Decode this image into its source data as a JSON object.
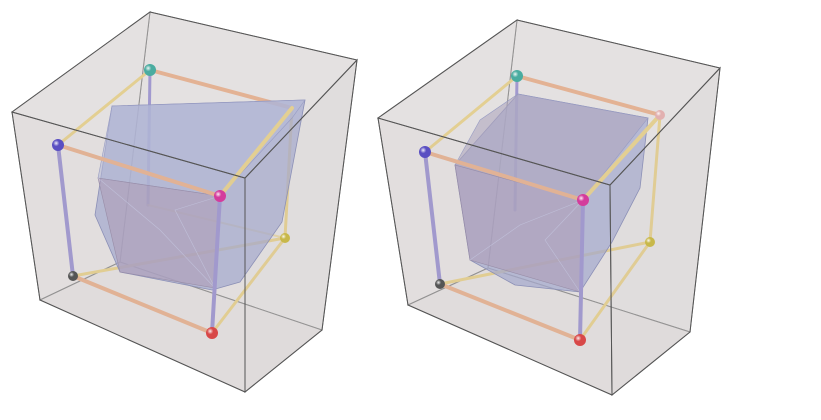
{
  "figure": {
    "panels": [
      {
        "name": "left",
        "box_fill": "#e6e3e3",
        "hull_fill": "#8f96c7",
        "vertex_colors": [
          "#5a4fc2",
          "#4aaca0",
          "#d43c9c",
          "#c8b84a",
          "#555555",
          "#d84848"
        ]
      },
      {
        "name": "right",
        "box_fill": "#e6e3e3",
        "hull_fill": "#8f96c7",
        "vertex_colors": [
          "#5a4fc2",
          "#4aaca0",
          "#d43c9c",
          "#c8b84a",
          "#555555",
          "#d84848"
        ]
      }
    ],
    "edge_colors": {
      "orange": "#e2a27a",
      "violet": "#8a80c8",
      "gold": "#e2c877"
    }
  }
}
